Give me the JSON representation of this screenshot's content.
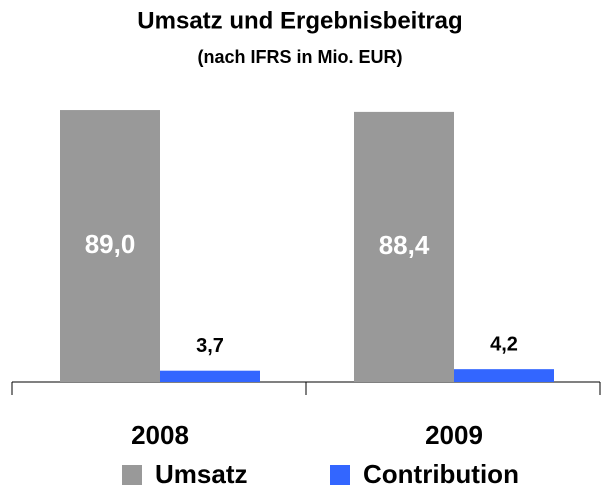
{
  "chart_data": {
    "type": "bar",
    "title": "Umsatz und Ergebnisbeitrag",
    "subtitle": "(nach IFRS in Mio. EUR)",
    "categories": [
      "2008",
      "2009"
    ],
    "series": [
      {
        "name": "Umsatz",
        "color": "#999999",
        "values": [
          89.0,
          88.4
        ],
        "value_labels": [
          "89,0",
          "88,4"
        ]
      },
      {
        "name": "Contribution",
        "color": "#3366ff",
        "values": [
          3.7,
          4.2
        ],
        "value_labels": [
          "3,7",
          "4,2"
        ]
      }
    ],
    "ylim": [
      0,
      90
    ]
  }
}
